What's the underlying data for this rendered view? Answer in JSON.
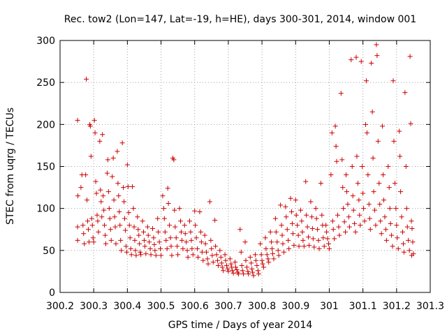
{
  "chart_data": {
    "type": "scatter",
    "title": "Rec. tow2 (Lon=147, Lat=-19, h=HE), days 300-301, 2014, window 001",
    "xlabel": "GPS time / Days of year 2014",
    "ylabel": "STEC from uqrg / TECUs",
    "xlim": [
      300.2,
      301.3
    ],
    "ylim": [
      0,
      300
    ],
    "xticks": [
      300.2,
      300.3,
      300.4,
      300.5,
      300.6,
      300.7,
      300.8,
      300.9,
      301.0,
      301.1,
      301.2,
      301.3
    ],
    "xtick_labels": [
      "300.2",
      "300.3",
      "300.4",
      "300.5",
      "300.6",
      "300.7",
      "300.8",
      "300.9",
      "301",
      "301.1",
      "301.2",
      "301.3"
    ],
    "yticks": [
      0,
      50,
      100,
      150,
      200,
      250,
      300
    ],
    "ytick_labels": [
      "0",
      "50",
      "100",
      "150",
      "200",
      "250",
      "300"
    ],
    "grid": true,
    "marker": "plus",
    "color": "#cc0000",
    "points": [
      [
        300.252,
        205
      ],
      [
        300.253,
        115
      ],
      [
        300.252,
        78
      ],
      [
        300.252,
        62
      ],
      [
        300.262,
        125
      ],
      [
        300.265,
        140
      ],
      [
        300.268,
        80
      ],
      [
        300.27,
        70
      ],
      [
        300.272,
        58
      ],
      [
        300.276,
        140
      ],
      [
        300.278,
        254
      ],
      [
        300.28,
        110
      ],
      [
        300.282,
        85
      ],
      [
        300.284,
        75
      ],
      [
        300.286,
        60
      ],
      [
        300.288,
        200
      ],
      [
        300.29,
        198
      ],
      [
        300.292,
        162
      ],
      [
        300.294,
        88
      ],
      [
        300.296,
        80
      ],
      [
        300.298,
        65
      ],
      [
        300.3,
        60
      ],
      [
        300.302,
        205
      ],
      [
        300.304,
        190
      ],
      [
        300.306,
        132
      ],
      [
        300.308,
        118
      ],
      [
        300.31,
        92
      ],
      [
        300.312,
        85
      ],
      [
        300.314,
        72
      ],
      [
        300.318,
        180
      ],
      [
        300.32,
        122
      ],
      [
        300.322,
        108
      ],
      [
        300.324,
        90
      ],
      [
        300.326,
        188
      ],
      [
        300.328,
        115
      ],
      [
        300.33,
        98
      ],
      [
        300.332,
        80
      ],
      [
        300.334,
        68
      ],
      [
        300.336,
        58
      ],
      [
        300.34,
        142
      ],
      [
        300.342,
        158
      ],
      [
        300.344,
        120
      ],
      [
        300.346,
        100
      ],
      [
        300.348,
        88
      ],
      [
        300.35,
        75
      ],
      [
        300.352,
        62
      ],
      [
        300.355,
        138
      ],
      [
        300.358,
        160
      ],
      [
        300.36,
        110
      ],
      [
        300.362,
        90
      ],
      [
        300.364,
        78
      ],
      [
        300.366,
        58
      ],
      [
        300.37,
        168
      ],
      [
        300.372,
        130
      ],
      [
        300.374,
        115
      ],
      [
        300.376,
        96
      ],
      [
        300.378,
        80
      ],
      [
        300.38,
        62
      ],
      [
        300.382,
        50
      ],
      [
        300.385,
        178
      ],
      [
        300.388,
        125
      ],
      [
        300.39,
        108
      ],
      [
        300.392,
        88
      ],
      [
        300.394,
        74
      ],
      [
        300.396,
        55
      ],
      [
        300.398,
        48
      ],
      [
        300.4,
        152
      ],
      [
        300.402,
        126
      ],
      [
        300.404,
        95
      ],
      [
        300.406,
        80
      ],
      [
        300.408,
        65
      ],
      [
        300.41,
        52
      ],
      [
        300.412,
        45
      ],
      [
        300.415,
        126
      ],
      [
        300.418,
        100
      ],
      [
        300.42,
        78
      ],
      [
        300.422,
        62
      ],
      [
        300.424,
        50
      ],
      [
        300.426,
        44
      ],
      [
        300.43,
        90
      ],
      [
        300.432,
        75
      ],
      [
        300.434,
        68
      ],
      [
        300.436,
        58
      ],
      [
        300.438,
        48
      ],
      [
        300.44,
        45
      ],
      [
        300.445,
        85
      ],
      [
        300.448,
        72
      ],
      [
        300.45,
        62
      ],
      [
        300.452,
        55
      ],
      [
        300.455,
        46
      ],
      [
        300.46,
        78
      ],
      [
        300.462,
        68
      ],
      [
        300.465,
        60
      ],
      [
        300.468,
        52
      ],
      [
        300.47,
        45
      ],
      [
        300.475,
        76
      ],
      [
        300.478,
        65
      ],
      [
        300.48,
        57
      ],
      [
        300.482,
        50
      ],
      [
        300.485,
        44
      ],
      [
        300.49,
        88
      ],
      [
        300.492,
        72
      ],
      [
        300.495,
        60
      ],
      [
        300.498,
        52
      ],
      [
        300.5,
        44
      ],
      [
        300.505,
        115
      ],
      [
        300.508,
        100
      ],
      [
        300.51,
        88
      ],
      [
        300.512,
        72
      ],
      [
        300.515,
        62
      ],
      [
        300.518,
        52
      ],
      [
        300.52,
        124
      ],
      [
        300.522,
        106
      ],
      [
        300.525,
        80
      ],
      [
        300.528,
        65
      ],
      [
        300.53,
        55
      ],
      [
        300.532,
        44
      ],
      [
        300.535,
        160
      ],
      [
        300.538,
        158
      ],
      [
        300.54,
        98
      ],
      [
        300.542,
        78
      ],
      [
        300.545,
        65
      ],
      [
        300.548,
        55
      ],
      [
        300.55,
        45
      ],
      [
        300.555,
        100
      ],
      [
        300.558,
        85
      ],
      [
        300.56,
        72
      ],
      [
        300.562,
        62
      ],
      [
        300.565,
        52
      ],
      [
        300.57,
        80
      ],
      [
        300.572,
        70
      ],
      [
        300.575,
        60
      ],
      [
        300.578,
        50
      ],
      [
        300.58,
        42
      ],
      [
        300.585,
        85
      ],
      [
        300.588,
        72
      ],
      [
        300.59,
        62
      ],
      [
        300.592,
        52
      ],
      [
        300.595,
        45
      ],
      [
        300.6,
        97
      ],
      [
        300.602,
        80
      ],
      [
        300.605,
        65
      ],
      [
        300.608,
        52
      ],
      [
        300.61,
        42
      ],
      [
        300.615,
        96
      ],
      [
        300.618,
        72
      ],
      [
        300.62,
        60
      ],
      [
        300.622,
        48
      ],
      [
        300.625,
        38
      ],
      [
        300.63,
        68
      ],
      [
        300.632,
        58
      ],
      [
        300.635,
        48
      ],
      [
        300.638,
        40
      ],
      [
        300.64,
        34
      ],
      [
        300.645,
        108
      ],
      [
        300.648,
        62
      ],
      [
        300.65,
        52
      ],
      [
        300.652,
        44
      ],
      [
        300.655,
        36
      ],
      [
        300.66,
        86
      ],
      [
        300.662,
        55
      ],
      [
        300.665,
        45
      ],
      [
        300.668,
        38
      ],
      [
        300.67,
        32
      ],
      [
        300.675,
        50
      ],
      [
        300.678,
        42
      ],
      [
        300.68,
        35
      ],
      [
        300.682,
        30
      ],
      [
        300.685,
        26
      ],
      [
        300.69,
        45
      ],
      [
        300.692,
        38
      ],
      [
        300.695,
        32
      ],
      [
        300.698,
        28
      ],
      [
        300.7,
        25
      ],
      [
        300.705,
        40
      ],
      [
        300.708,
        34
      ],
      [
        300.71,
        30
      ],
      [
        300.712,
        26
      ],
      [
        300.715,
        23
      ],
      [
        300.72,
        36
      ],
      [
        300.722,
        30
      ],
      [
        300.725,
        27
      ],
      [
        300.728,
        24
      ],
      [
        300.73,
        22
      ],
      [
        300.735,
        75
      ],
      [
        300.738,
        48
      ],
      [
        300.74,
        32
      ],
      [
        300.742,
        26
      ],
      [
        300.745,
        22
      ],
      [
        300.75,
        60
      ],
      [
        300.752,
        38
      ],
      [
        300.755,
        30
      ],
      [
        300.758,
        25
      ],
      [
        300.76,
        22
      ],
      [
        300.765,
        42
      ],
      [
        300.768,
        35
      ],
      [
        300.77,
        28
      ],
      [
        300.772,
        24
      ],
      [
        300.775,
        20
      ],
      [
        300.78,
        45
      ],
      [
        300.782,
        38
      ],
      [
        300.785,
        32
      ],
      [
        300.788,
        26
      ],
      [
        300.79,
        22
      ],
      [
        300.795,
        58
      ],
      [
        300.798,
        45
      ],
      [
        300.8,
        38
      ],
      [
        300.802,
        34
      ],
      [
        300.805,
        30
      ],
      [
        300.81,
        65
      ],
      [
        300.812,
        52
      ],
      [
        300.815,
        45
      ],
      [
        300.818,
        40
      ],
      [
        300.82,
        36
      ],
      [
        300.825,
        72
      ],
      [
        300.828,
        60
      ],
      [
        300.83,
        52
      ],
      [
        300.832,
        46
      ],
      [
        300.835,
        40
      ],
      [
        300.84,
        88
      ],
      [
        300.842,
        72
      ],
      [
        300.845,
        60
      ],
      [
        300.848,
        50
      ],
      [
        300.85,
        44
      ],
      [
        300.855,
        104
      ],
      [
        300.858,
        80
      ],
      [
        300.86,
        68
      ],
      [
        300.862,
        58
      ],
      [
        300.865,
        48
      ],
      [
        300.87,
        102
      ],
      [
        300.872,
        90
      ],
      [
        300.875,
        75
      ],
      [
        300.878,
        62
      ],
      [
        300.88,
        52
      ],
      [
        300.885,
        112
      ],
      [
        300.888,
        96
      ],
      [
        300.89,
        82
      ],
      [
        300.892,
        70
      ],
      [
        300.895,
        56
      ],
      [
        300.9,
        110
      ],
      [
        300.902,
        92
      ],
      [
        300.905,
        80
      ],
      [
        300.908,
        68
      ],
      [
        300.91,
        55
      ],
      [
        300.915,
        98
      ],
      [
        300.918,
        85
      ],
      [
        300.92,
        72
      ],
      [
        300.922,
        62
      ],
      [
        300.925,
        55
      ],
      [
        300.93,
        132
      ],
      [
        300.932,
        92
      ],
      [
        300.935,
        78
      ],
      [
        300.938,
        66
      ],
      [
        300.94,
        56
      ],
      [
        300.945,
        108
      ],
      [
        300.948,
        90
      ],
      [
        300.95,
        76
      ],
      [
        300.952,
        64
      ],
      [
        300.955,
        54
      ],
      [
        300.96,
        100
      ],
      [
        300.962,
        88
      ],
      [
        300.965,
        75
      ],
      [
        300.968,
        62
      ],
      [
        300.97,
        52
      ],
      [
        300.975,
        130
      ],
      [
        300.978,
        92
      ],
      [
        300.98,
        80
      ],
      [
        300.982,
        65
      ],
      [
        300.985,
        55
      ],
      [
        300.99,
        80
      ],
      [
        300.992,
        72
      ],
      [
        300.995,
        64
      ],
      [
        300.998,
        58
      ],
      [
        301.0,
        52
      ],
      [
        301.005,
        140
      ],
      [
        301.008,
        190
      ],
      [
        301.01,
        85
      ],
      [
        301.012,
        75
      ],
      [
        301.015,
        64
      ],
      [
        301.018,
        198
      ],
      [
        301.02,
        174
      ],
      [
        301.022,
        156
      ],
      [
        301.025,
        92
      ],
      [
        301.028,
        78
      ],
      [
        301.03,
        68
      ],
      [
        301.035,
        237
      ],
      [
        301.038,
        158
      ],
      [
        301.04,
        125
      ],
      [
        301.042,
        100
      ],
      [
        301.045,
        84
      ],
      [
        301.048,
        72
      ],
      [
        301.05,
        140
      ],
      [
        301.052,
        120
      ],
      [
        301.055,
        105
      ],
      [
        301.058,
        90
      ],
      [
        301.06,
        78
      ],
      [
        301.065,
        277
      ],
      [
        301.068,
        150
      ],
      [
        301.07,
        115
      ],
      [
        301.072,
        98
      ],
      [
        301.075,
        82
      ],
      [
        301.078,
        72
      ],
      [
        301.08,
        280
      ],
      [
        301.082,
        162
      ],
      [
        301.085,
        130
      ],
      [
        301.088,
        110
      ],
      [
        301.09,
        92
      ],
      [
        301.092,
        80
      ],
      [
        301.095,
        275
      ],
      [
        301.098,
        150
      ],
      [
        301.1,
        118
      ],
      [
        301.102,
        100
      ],
      [
        301.105,
        85
      ],
      [
        301.108,
        200
      ],
      [
        301.11,
        252
      ],
      [
        301.112,
        190
      ],
      [
        301.115,
        140
      ],
      [
        301.118,
        105
      ],
      [
        301.12,
        88
      ],
      [
        301.122,
        75
      ],
      [
        301.125,
        273
      ],
      [
        301.128,
        215
      ],
      [
        301.13,
        160
      ],
      [
        301.132,
        120
      ],
      [
        301.135,
        98
      ],
      [
        301.138,
        80
      ],
      [
        301.14,
        295
      ],
      [
        301.142,
        282
      ],
      [
        301.145,
        180
      ],
      [
        301.148,
        130
      ],
      [
        301.15,
        105
      ],
      [
        301.152,
        85
      ],
      [
        301.155,
        70
      ],
      [
        301.158,
        198
      ],
      [
        301.16,
        140
      ],
      [
        301.162,
        110
      ],
      [
        301.165,
        90
      ],
      [
        301.168,
        75
      ],
      [
        301.17,
        62
      ],
      [
        301.175,
        150
      ],
      [
        301.178,
        125
      ],
      [
        301.18,
        100
      ],
      [
        301.182,
        82
      ],
      [
        301.185,
        68
      ],
      [
        301.188,
        55
      ],
      [
        301.19,
        252
      ],
      [
        301.192,
        180
      ],
      [
        301.195,
        130
      ],
      [
        301.198,
        100
      ],
      [
        301.2,
        80
      ],
      [
        301.202,
        65
      ],
      [
        301.205,
        52
      ],
      [
        301.208,
        192
      ],
      [
        301.21,
        162
      ],
      [
        301.212,
        120
      ],
      [
        301.215,
        90
      ],
      [
        301.218,
        72
      ],
      [
        301.22,
        58
      ],
      [
        301.222,
        48
      ],
      [
        301.225,
        238
      ],
      [
        301.228,
        150
      ],
      [
        301.23,
        100
      ],
      [
        301.232,
        78
      ],
      [
        301.235,
        62
      ],
      [
        301.238,
        50
      ],
      [
        301.24,
        281
      ],
      [
        301.242,
        201
      ],
      [
        301.244,
        85
      ],
      [
        301.246,
        76
      ],
      [
        301.248,
        60
      ],
      [
        301.25,
        46
      ],
      [
        301.245,
        44
      ]
    ]
  }
}
